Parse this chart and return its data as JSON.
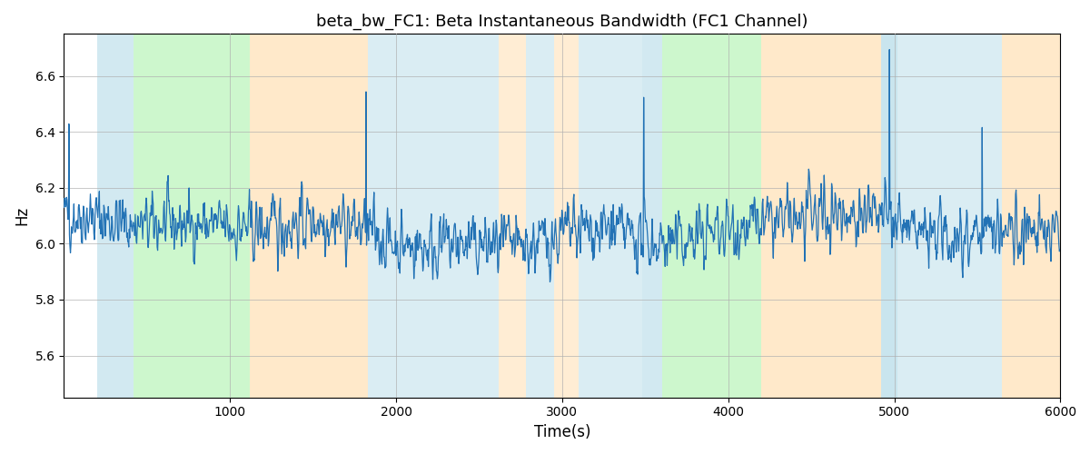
{
  "title": "beta_bw_FC1: Beta Instantaneous Bandwidth (FC1 Channel)",
  "xlabel": "Time(s)",
  "ylabel": "Hz",
  "xlim": [
    0,
    6000
  ],
  "ylim": [
    5.45,
    6.75
  ],
  "yticks": [
    5.6,
    5.8,
    6.0,
    6.2,
    6.4,
    6.6
  ],
  "xticks": [
    1000,
    2000,
    3000,
    4000,
    5000,
    6000
  ],
  "line_color": "#2272b5",
  "line_width": 0.9,
  "figsize": [
    12,
    5
  ],
  "dpi": 100,
  "seed": 42,
  "n_points": 2000,
  "signal_mean": 6.04,
  "signal_std": 0.095,
  "background_bands": [
    {
      "xstart": 200,
      "xend": 420,
      "color": "#add8e6",
      "alpha": 0.55
    },
    {
      "xstart": 420,
      "xend": 1120,
      "color": "#90ee90",
      "alpha": 0.45
    },
    {
      "xstart": 1120,
      "xend": 1830,
      "color": "#ffd8a0",
      "alpha": 0.55
    },
    {
      "xstart": 1830,
      "xend": 2620,
      "color": "#add8e6",
      "alpha": 0.45
    },
    {
      "xstart": 2620,
      "xend": 2780,
      "color": "#ffd8a0",
      "alpha": 0.45
    },
    {
      "xstart": 2780,
      "xend": 2950,
      "color": "#add8e6",
      "alpha": 0.45
    },
    {
      "xstart": 2950,
      "xend": 3100,
      "color": "#ffd8a0",
      "alpha": 0.45
    },
    {
      "xstart": 3100,
      "xend": 3480,
      "color": "#add8e6",
      "alpha": 0.45
    },
    {
      "xstart": 3480,
      "xend": 3600,
      "color": "#add8e6",
      "alpha": 0.55
    },
    {
      "xstart": 3600,
      "xend": 4200,
      "color": "#90ee90",
      "alpha": 0.45
    },
    {
      "xstart": 4200,
      "xend": 4920,
      "color": "#ffd8a0",
      "alpha": 0.55
    },
    {
      "xstart": 4920,
      "xend": 5020,
      "color": "#add8e6",
      "alpha": 0.65
    },
    {
      "xstart": 5020,
      "xend": 5650,
      "color": "#add8e6",
      "alpha": 0.45
    },
    {
      "xstart": 5650,
      "xend": 6050,
      "color": "#ffd8a0",
      "alpha": 0.55
    }
  ],
  "grid_color": "#b0b0b0",
  "grid_alpha": 0.8,
  "grid_linewidth": 0.6
}
